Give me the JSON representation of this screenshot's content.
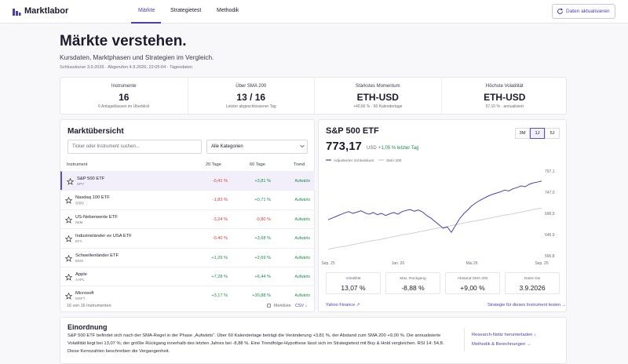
{
  "header": {
    "logo": "Marktlabor",
    "nav": [
      "Märkte",
      "Strategietest",
      "Methodik"
    ],
    "button": "Daten aktualisieren"
  },
  "hero": {
    "title": "Märkte verstehen.",
    "subtitle": "Kursdaten, Marktphasen und Strategien im Vergleich.",
    "meta": "Schlusskurse 3.9.2026 · Abgerufen 4.9.2026, 22:05:04 · Tagesdaten"
  },
  "stats": [
    {
      "label": "Instrumente",
      "value": "16",
      "note": "6 Anlageklassen im Überblick"
    },
    {
      "label": "Über SMA 200",
      "value": "13 / 16",
      "note": "Letzter abgeschlossener Tag"
    },
    {
      "label": "Stärkstes Momentum",
      "value": "ETH-USD",
      "note": "+40,66 % · 60 Kalendertage"
    },
    {
      "label": "Höchste Volatilität",
      "value": "ETH-USD",
      "note": "57,10 % · annualisiert"
    }
  ],
  "overview": {
    "title": "Marktübersicht",
    "search_placeholder": "Ticker oder Instrument suchen...",
    "category_filter": "Alle Kategorien",
    "columns": [
      "Instrument",
      "20 Tage",
      "60 Tage",
      "Trend"
    ],
    "rows": [
      {
        "name": "S&P 500 ETF",
        "ticker": "SPY",
        "change_20d": "-0,41 %",
        "change_60d": "+3,81 %",
        "trend": "Aufwärts"
      },
      {
        "name": "Nasdaq 100 ETF",
        "ticker": "QQQ",
        "change_20d": "-1,83 %",
        "change_60d": "+0,71 %",
        "trend": "Aufwärts"
      },
      {
        "name": "US-Nebenwerte ETF",
        "ticker": "IWM",
        "change_20d": "-3,24 %",
        "change_60d": "-0,80 %",
        "trend": "Aufwärts"
      },
      {
        "name": "Industrieländer ex USA ETF",
        "ticker": "EFA",
        "change_20d": "-0,40 %",
        "change_60d": "+3,68 %",
        "trend": "Aufwärts"
      },
      {
        "name": "Schwellenländer ETF",
        "ticker": "EEM",
        "change_20d": "+1,29 %",
        "change_60d": "+2,69 %",
        "trend": "Aufwärts"
      },
      {
        "name": "Apple",
        "ticker": "AAPL",
        "change_20d": "+7,28 %",
        "change_60d": "+6,44 %",
        "trend": "Aufwärts"
      },
      {
        "name": "Microsoft",
        "ticker": "MSFT",
        "change_20d": "+3,17 %",
        "change_60d": "+30,88 %",
        "trend": "Aufwärts"
      }
    ],
    "count": "16 von 16 Instrumenten",
    "watchlist": "Merkliste",
    "export": "CSV ↓"
  },
  "detail": {
    "title": "S&P 500 ETF",
    "price": "773,17",
    "currency": "USD",
    "day_change": "+1,05 % letzter Tag",
    "ranges": [
      "3M",
      "1J",
      "5J"
    ],
    "metrics": [
      {
        "label": "Volatilität",
        "value": "13,07 %"
      },
      {
        "label": "Max. Rückgang",
        "value": "-8,88 %"
      },
      {
        "label": "Abstand SMA 200",
        "value": "+9,00 %"
      },
      {
        "label": "Daten bis",
        "value": "3.9.2026"
      }
    ],
    "source_link": "Yahoo Finance ↗",
    "strategy_link": "Strategie für dieses Instrument testen →"
  },
  "chart_data": {
    "type": "line",
    "categories": [
      "Sep. 25",
      null,
      null,
      null,
      null,
      null,
      null,
      null,
      null,
      null,
      null,
      null,
      null,
      null,
      null,
      null,
      null,
      "Jan. 26",
      null,
      null,
      null,
      null,
      null,
      null,
      null,
      null,
      null,
      null,
      null,
      null,
      null,
      null,
      null,
      null,
      null,
      "Mai 26",
      null,
      null,
      null,
      null,
      null,
      null,
      null,
      null,
      null,
      null,
      null,
      null,
      null,
      null,
      null,
      null,
      "Sep. 26"
    ],
    "series": [
      {
        "name": "Adjustierter Schlusskurs",
        "color": "#4b3fb0",
        "values": [
          682,
          686,
          690,
          694,
          698,
          701,
          697,
          700,
          703,
          698,
          695,
          699,
          694,
          697,
          692,
          696,
          699,
          695,
          701,
          704,
          706,
          702,
          705,
          700,
          692,
          686,
          678,
          670,
          662,
          665,
          652,
          668,
          684,
          696,
          705,
          715,
          722,
          728,
          733,
          738,
          742,
          745,
          748,
          752,
          750,
          755,
          758,
          762,
          760,
          766,
          769,
          771,
          773.17
        ]
      },
      {
        "name": "SMA 200",
        "color": "#c9c9d2",
        "values": [
          612,
          614,
          616,
          618,
          619,
          621,
          623,
          625,
          627,
          629,
          631,
          633,
          634,
          636,
          638,
          640,
          642,
          644,
          646,
          648,
          649,
          651,
          653,
          655,
          657,
          659,
          661,
          663,
          664,
          666,
          668,
          670,
          672,
          674,
          676,
          678,
          679,
          681,
          683,
          685,
          687,
          689,
          691,
          693,
          694,
          696,
          698,
          700,
          702,
          704,
          706,
          708,
          709
        ]
      }
    ],
    "ylim": [
      596.8,
      797.1
    ],
    "yticks": [
      {
        "value": 596.8,
        "label": "596,8"
      },
      {
        "value": 646.9,
        "label": "646,9"
      },
      {
        "value": 696.9,
        "label": "696,9"
      },
      {
        "value": 747.0,
        "label": "747,0"
      },
      {
        "value": 797.1,
        "label": "797,1"
      }
    ],
    "grid": false
  },
  "summary": {
    "title": "Einordnung",
    "text": "S&P 500 ETF befindet sich nach der SMA-Regel in der Phase „Aufwärts“. Über 60 Kalendertage beträgt die Veränderung +3,81 %, der Abstand zum SMA 200 +9,00 %. Die annualisierte Volatilität liegt bei 13,07 %; der größte Rückgang innerhalb des letzten Jahres bei -8,88 %. Eine Trendfolge-Hypothese lässt sich im Strategietest mit Buy & Hold vergleichen. RSI 14: 54,8. Diese Kennzahlen beschreiben die Vergangenheit.",
    "links": [
      "Research-Notiz herunterladen ↓",
      "Methodik & Berechnungen →"
    ]
  }
}
